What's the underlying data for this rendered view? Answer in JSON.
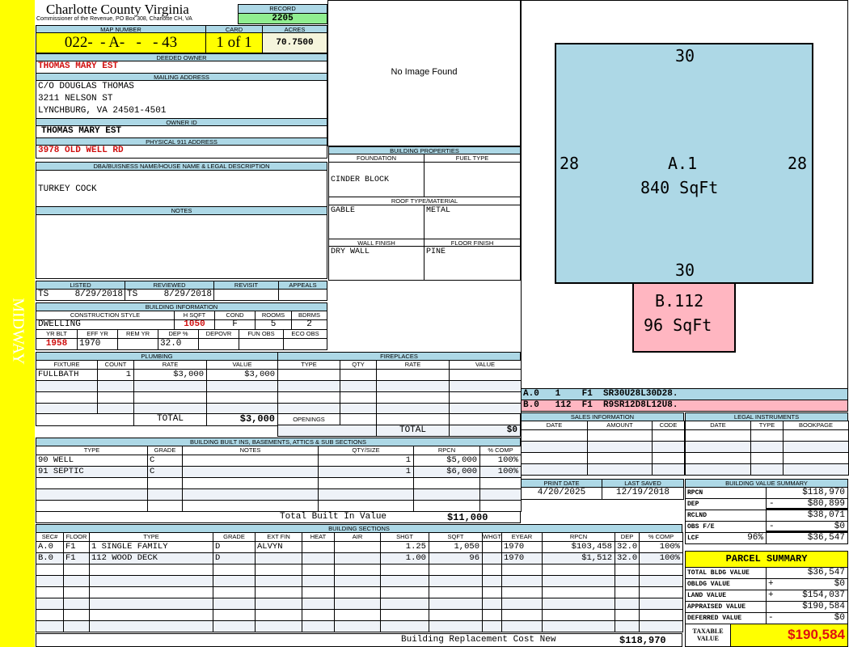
{
  "sidebar": {
    "label": "MIDWAY",
    "color": "#ffff00"
  },
  "header": {
    "title": "Charlotte County Virginia",
    "subtitle": "Commissioner of the Revenue, PO Box 308, Charlotte CH, VA"
  },
  "record": {
    "label": "RECORD",
    "value": "2205"
  },
  "map": {
    "map_label": "MAP NUMBER",
    "map_value": "022-  - A-   -   - 43",
    "card_label": "CARD",
    "card_value": "1 of 1",
    "acres_label": "ACRES",
    "acres_value": "70.7500"
  },
  "owner": {
    "deeded_label": "DEEDED OWNER",
    "deeded_value": "THOMAS MARY EST",
    "mailing_label": "MAILING ADDRESS",
    "mailing_lines": [
      "C/O DOUGLAS THOMAS",
      "3211 NELSON ST",
      "LYNCHBURG, VA 24501-4501"
    ],
    "owner_id_label": "OWNER ID",
    "owner_id_value": "THOMAS MARY EST",
    "address_label": "PHYSICAL 911 ADDRESS",
    "address_value": "3978 OLD WELL RD"
  },
  "dba": {
    "label": "DBA/BUISNESS NAME/HOUSE NAME & LEGAL DESCRIPTION",
    "value": "TURKEY COCK"
  },
  "notes": {
    "label": "NOTES"
  },
  "image": {
    "text": "No Image Found"
  },
  "props": {
    "title": "BUILDING PROPERTIES",
    "foundation_label": "FOUNDATION",
    "fuel_label": "FUEL TYPE",
    "foundation": "CINDER BLOCK",
    "roof_label": "ROOF TYPE/MATERIAL",
    "roof_type": "GABLE",
    "roof_material": "METAL",
    "wall_label": "WALL FINISH",
    "floor_label": "FLOOR FINISH",
    "wall": "DRY WALL",
    "floor": "PINE"
  },
  "review": {
    "listed_label": "LISTED",
    "reviewed_label": "REVIEWED",
    "revisit_label": "REVISIT",
    "appeals_label": "APPEALS",
    "listed_by": "TS",
    "listed_date": "8/29/2018",
    "reviewed_by": "TS",
    "reviewed_date": "8/29/2018"
  },
  "building": {
    "title": "BUILDING INFORMATION",
    "labels": [
      "CONSTRUCTION STYLE",
      "H SQFT",
      "COND",
      "ROOMS",
      "BDRMS"
    ],
    "style": "DWELLING",
    "hsqft": "1050",
    "cond": "F",
    "rooms": "5",
    "bdrms": "2",
    "labels2": [
      "YR BLT",
      "EFF YR",
      "REM YR",
      "DEP %",
      "DEPOVR",
      "FUN OBS",
      "ECO OBS"
    ],
    "yr_blt": "1958",
    "eff_yr": "1970",
    "dep": "32.0"
  },
  "plumbing": {
    "title": "PLUMBING",
    "cols": [
      "FIXTURE",
      "COUNT",
      "RATE",
      "VALUE"
    ],
    "row": [
      "FULLBATH",
      "1",
      "$3,000",
      "$3,000"
    ],
    "total_label": "TOTAL",
    "total": "$3,000"
  },
  "fireplaces": {
    "title": "FIREPLACES",
    "cols": [
      "TYPE",
      "QTY",
      "RATE",
      "VALUE"
    ],
    "openings_label": "OPENINGS",
    "total_label": "TOTAL",
    "total": "$0"
  },
  "builtins": {
    "title": "BUILDING BUILT INS, BASEMENTS, ATTICS & SUB SECTIONS",
    "cols": [
      "TYPE",
      "GRADE",
      "NOTES",
      "QTY/SIZE",
      "RPCN",
      "% COMP"
    ],
    "rows": [
      [
        "90 WELL",
        "C",
        "",
        "1",
        "$5,000",
        "100%"
      ],
      [
        "91 SEPTIC",
        "C",
        "",
        "1",
        "$6,000",
        "100%"
      ]
    ],
    "total_label": "Total Built In Value",
    "total": "$11,000"
  },
  "sections": {
    "title": "BUILDING SECTIONS",
    "cols": [
      "SEC#",
      "FLOOR",
      "TYPE",
      "GRADE",
      "EXT FIN",
      "HEAT",
      "AIR",
      "SHGT",
      "SQFT",
      "WHGT",
      "EYEAR",
      "RPCN",
      "DEP",
      "% COMP"
    ],
    "rows": [
      [
        "A.0",
        "F1",
        "1 SINGLE FAMILY",
        "D",
        "ALVYN",
        "",
        "",
        "1.25",
        "1,050",
        "",
        "1970",
        "$103,458",
        "32.0",
        "100%"
      ],
      [
        "B.0",
        "F1",
        "112 WOOD DECK",
        "D",
        "",
        "",
        "",
        "1.00",
        "96",
        "",
        "1970",
        "$1,512",
        "32.0",
        "100%"
      ]
    ],
    "footer_label": "Building Replacement Cost New",
    "footer_value": "$118,970"
  },
  "sketch": {
    "main_top": "30",
    "main_bottom": "30",
    "main_left": "28",
    "main_right": "28",
    "main_id": "A.1",
    "main_area": "840 SqFt",
    "deck_id": "B.112",
    "deck_area": "96 SqFt",
    "main_color": "#add8e6",
    "deck_color": "#ffb6c1",
    "legend": [
      [
        "A.0",
        "1",
        "F1",
        "SR30U28L30D28."
      ],
      [
        "B.0",
        "112",
        "F1",
        "R9SR12D8L12U8."
      ]
    ]
  },
  "sales": {
    "title": "SALES INFORMATION",
    "cols": [
      "DATE",
      "AMOUNT",
      "CODE"
    ]
  },
  "legal": {
    "title": "LEGAL INSTRUMENTS",
    "cols": [
      "DATE",
      "TYPE",
      "BOOKPAGE"
    ]
  },
  "dates": {
    "print_label": "PRINT DATE",
    "saved_label": "LAST SAVED",
    "print": "4/20/2025",
    "saved": "12/19/2018"
  },
  "bvs": {
    "title": "BUILDING VALUE SUMMARY",
    "rows": [
      [
        "RPCN",
        "",
        "",
        "$118,970"
      ],
      [
        "DEP",
        "",
        "-",
        "$80,899"
      ],
      [
        "RCLND",
        "",
        "",
        "$38,071"
      ],
      [
        "OBS F/E",
        "",
        "-",
        "$0"
      ],
      [
        "LCF",
        "96%",
        "",
        "$36,547"
      ]
    ]
  },
  "parcel": {
    "title": "PARCEL SUMMARY",
    "rows": [
      [
        "TOTAL BLDG VALUE",
        "",
        "$36,547"
      ],
      [
        "OBLDG VALUE",
        "+",
        "$0"
      ],
      [
        "LAND VALUE",
        "+",
        "$154,037"
      ],
      [
        "APPRAISED VALUE",
        "",
        "$190,584"
      ],
      [
        "DEFERRED VALUE",
        "-",
        "$0"
      ]
    ],
    "taxable_label": "TAXABLE VALUE",
    "taxable": "$190,584"
  }
}
